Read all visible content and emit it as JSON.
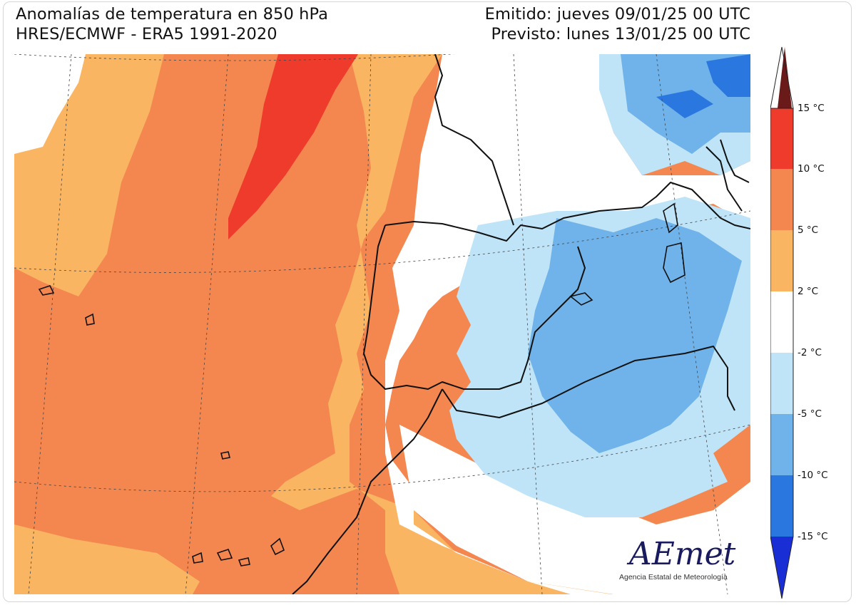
{
  "header": {
    "title": "Anomalías de temperatura en 850 hPa",
    "subtitle": "HRES/ECMWF - ERA5 1991-2020",
    "issued": "Emitido: jueves 09/01/25 00 UTC",
    "forecast": "Previsto: lunes 13/01/25 00 UTC"
  },
  "legend": {
    "ticks": [
      {
        "label": "15 °C",
        "value": 15
      },
      {
        "label": "10 °C",
        "value": 10
      },
      {
        "label": "5 °C",
        "value": 5
      },
      {
        "label": "2 °C",
        "value": 2
      },
      {
        "label": "-2 °C",
        "value": -2
      },
      {
        "label": "-5 °C",
        "value": -5
      },
      {
        "label": "-10 °C",
        "value": -10
      },
      {
        "label": "-15 °C",
        "value": -15
      }
    ],
    "colors": {
      "above_15": "#6b1a1a",
      "10_to_15": "#ef3b2c",
      "5_to_10": "#f4874f",
      "2_to_5": "#f9b561",
      "-2_to_2": "#ffffff",
      "-5_to_-2": "#bfe4f7",
      "-10_to_-5": "#6fb3ea",
      "-15_to_-10": "#2a78df",
      "below_-15": "#1a2ed6"
    }
  },
  "logo": {
    "text": "AEmet",
    "tagline": "Agencia Estatal de Meteorología"
  }
}
